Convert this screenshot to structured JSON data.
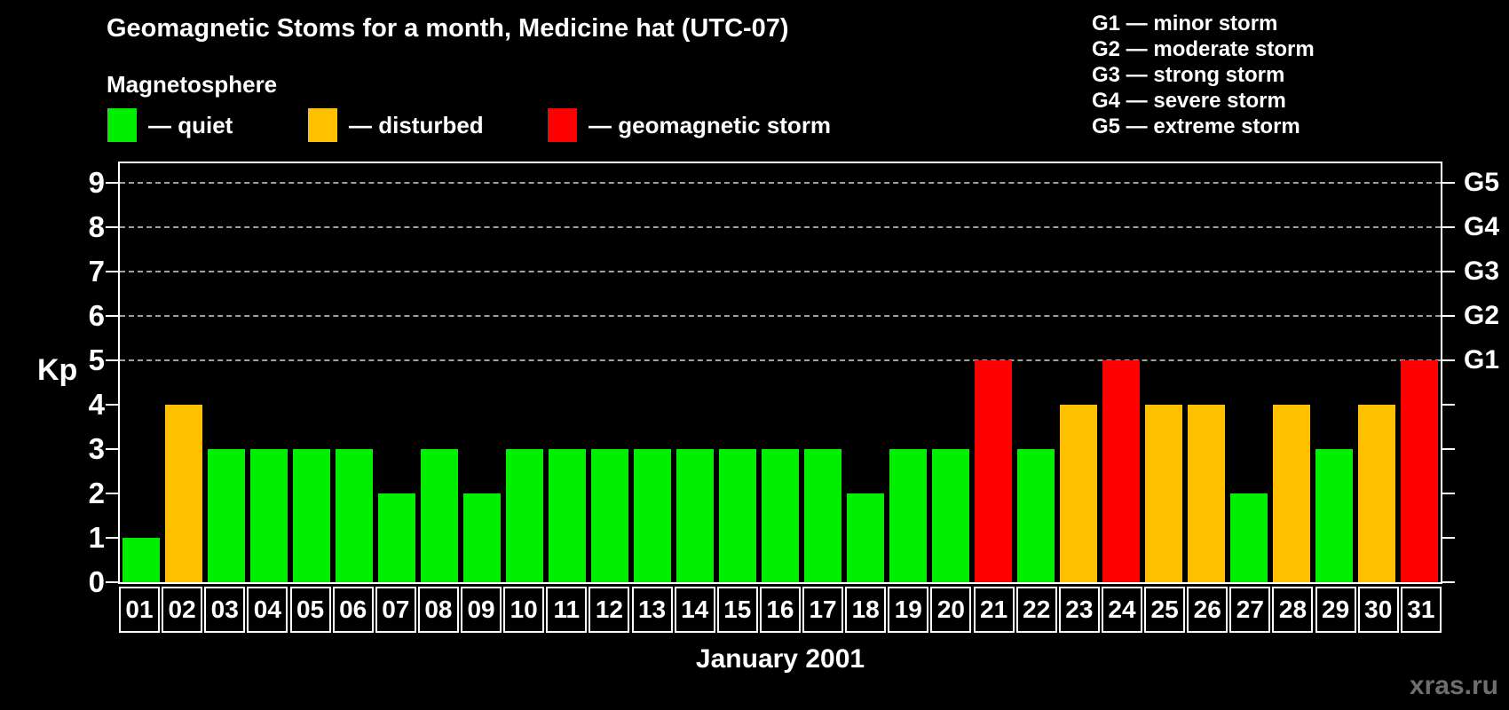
{
  "title": "Geomagnetic Stoms for a month, Medicine hat (UTC-07)",
  "legend": {
    "heading": "Magnetosphere",
    "items": [
      {
        "key": "quiet",
        "label": "— quiet",
        "color": "#00ee00"
      },
      {
        "key": "disturbed",
        "label": "— disturbed",
        "color": "#ffc000"
      },
      {
        "key": "storm",
        "label": "— geomagnetic storm",
        "color": "#ff0000"
      }
    ]
  },
  "g_legend": {
    "lines": [
      "G1 — minor storm",
      "G2 — moderate storm",
      "G3 — strong storm",
      "G4 — severe storm",
      "G5 — extreme storm"
    ]
  },
  "axes": {
    "y_label": "Kp",
    "y_ticks": [
      9,
      8,
      7,
      6,
      5,
      4,
      3,
      2,
      1,
      0
    ],
    "right_labels": [
      {
        "label": "G5",
        "kp": 9
      },
      {
        "label": "G4",
        "kp": 8
      },
      {
        "label": "G3",
        "kp": 7
      },
      {
        "label": "G2",
        "kp": 6
      },
      {
        "label": "G1",
        "kp": 5
      }
    ],
    "x_label": "January 2001"
  },
  "watermark": "xras.ru",
  "chart_data": {
    "type": "bar",
    "title": "Geomagnetic Stoms for a month, Medicine hat (UTC-07)",
    "xlabel": "January 2001",
    "ylabel": "Kp",
    "ylim": [
      0,
      9.4
    ],
    "grid": "dashed horizontal at Kp 5-9 only",
    "legend_position": "top-left and top-right",
    "categories": [
      "01",
      "02",
      "03",
      "04",
      "05",
      "06",
      "07",
      "08",
      "09",
      "10",
      "11",
      "12",
      "13",
      "14",
      "15",
      "16",
      "17",
      "18",
      "19",
      "20",
      "21",
      "22",
      "23",
      "24",
      "25",
      "26",
      "27",
      "28",
      "29",
      "30",
      "31"
    ],
    "values": [
      1,
      4,
      3,
      3,
      3,
      3,
      2,
      3,
      2,
      3,
      3,
      3,
      3,
      3,
      3,
      3,
      3,
      2,
      3,
      3,
      5,
      3,
      4,
      5,
      4,
      4,
      2,
      4,
      3,
      4,
      5
    ],
    "states": [
      "quiet",
      "disturbed",
      "quiet",
      "quiet",
      "quiet",
      "quiet",
      "quiet",
      "quiet",
      "quiet",
      "quiet",
      "quiet",
      "quiet",
      "quiet",
      "quiet",
      "quiet",
      "quiet",
      "quiet",
      "quiet",
      "quiet",
      "quiet",
      "storm",
      "quiet",
      "disturbed",
      "storm",
      "disturbed",
      "disturbed",
      "quiet",
      "disturbed",
      "quiet",
      "disturbed",
      "storm"
    ],
    "colors": {
      "quiet": "#00ee00",
      "disturbed": "#ffc000",
      "storm": "#ff0000"
    },
    "gridlines_at_kp": [
      5,
      6,
      7,
      8,
      9
    ]
  }
}
